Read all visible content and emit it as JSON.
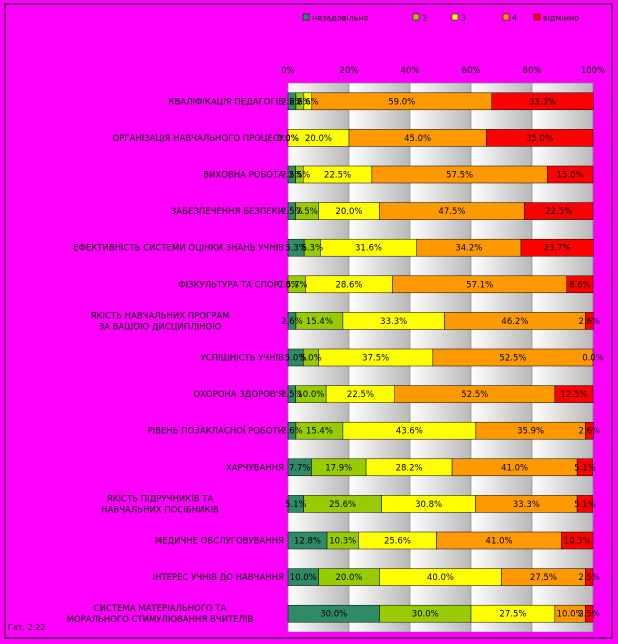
{
  "chart_data": {
    "type": "bar",
    "stacked": "percent",
    "orientation": "horizontal",
    "legend": [
      "незадовільно",
      "2",
      "3",
      "4",
      "відмінно"
    ],
    "legend_position": "top",
    "x_ticks": [
      "0%",
      "20%",
      "40%",
      "60%",
      "80%",
      "100%"
    ],
    "xlim": [
      0,
      100
    ],
    "grid": true,
    "colors": [
      "#2e8b66",
      "#99cc00",
      "#ffff00",
      "#ff9900",
      "#ff0000"
    ],
    "background": "#ff00ff",
    "footer": "Гат. 2.22",
    "categories": [
      "КВАЛІФІКАЦІЯ ПЕДАГОГІВ",
      "ОРГАНІЗАЦІЯ НАВЧАЛЬНОГО ПРОЦЕСУ",
      "ВИХОВНА РОБОТА",
      "ЗАБЕЗПЕЧЕННЯ БЕЗПЕКИ",
      "ЕФЕКТИВНІСТЬ СИСТЕМИ ОЦІНКИ ЗНАНЬ УЧНІВ",
      "ФІЗКУЛЬТУРА ТА СПОРТ",
      "ЯКІСТЬ НАВЧАЛЬНИХ ПРОГРАМ ЗА ВАШОЮ ДИСЦИПЛІНОЮ",
      "УСПІШНІСТЬ УЧНІВ",
      "ОХОРОНА ЗДОРОВ'Я",
      "РІВЕНЬ ПОЗАКЛАСНОЇ РОБОТИ",
      "ХАРЧУВАННЯ",
      "ЯКІСТЬ ПІДРУЧНИКІВ ТА НАВЧАЛЬНИХ ПОСІБНИКІВ",
      "МЕДИЧНЕ ОБСЛУГОВУВАННЯ",
      "ІНТЕРЕС УЧНІВ ДО НАВЧАННЯ",
      "СИСТЕМА МАТЕРІАЛЬНОГО ТА МОРАЛЬНОГО СТИМУЛЮВАННЯ ВЧИТЕЛІВ"
    ],
    "series": [
      {
        "name": "незадовільно",
        "values": [
          2.6,
          0.0,
          2.5,
          2.5,
          5.3,
          0.0,
          2.6,
          5.0,
          2.5,
          2.6,
          7.7,
          5.1,
          12.8,
          10.0,
          30.0
        ]
      },
      {
        "name": "2",
        "values": [
          2.6,
          0.0,
          2.5,
          7.5,
          5.3,
          5.7,
          15.4,
          5.0,
          10.0,
          15.4,
          17.9,
          25.6,
          10.3,
          20.0,
          30.0
        ]
      },
      {
        "name": "3",
        "values": [
          2.6,
          20.0,
          22.5,
          20.0,
          31.6,
          28.6,
          33.3,
          37.5,
          22.5,
          43.6,
          28.2,
          30.8,
          25.6,
          40.0,
          27.5
        ]
      },
      {
        "name": "4",
        "values": [
          59.0,
          45.0,
          57.5,
          47.5,
          34.2,
          57.1,
          46.2,
          52.5,
          52.5,
          35.9,
          41.0,
          33.3,
          41.0,
          27.5,
          10.0
        ]
      },
      {
        "name": "відмінно",
        "values": [
          33.3,
          35.0,
          15.0,
          22.5,
          23.7,
          8.6,
          2.6,
          0.0,
          12.5,
          2.6,
          5.1,
          5.1,
          10.3,
          2.5,
          2.5
        ]
      }
    ]
  }
}
